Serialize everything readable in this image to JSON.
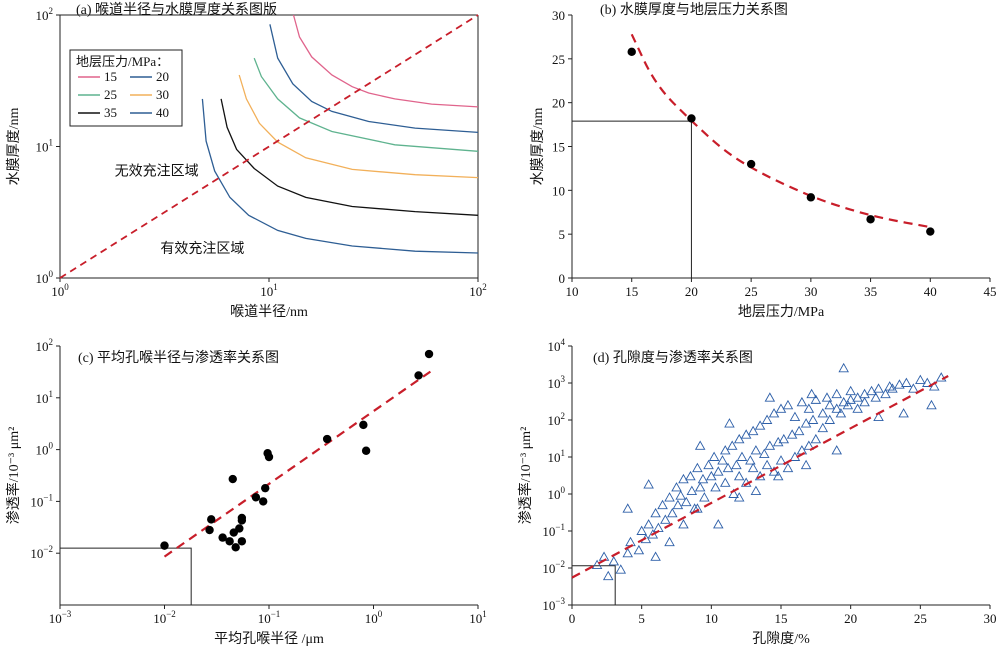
{
  "chart_data": [
    {
      "panel": "a",
      "type": "line",
      "title": "(a) 喉道半径与水膜厚度关系图版",
      "xlabel": "喉道半径/nm",
      "ylabel": "水膜厚度/nm",
      "xscale": "log",
      "yscale": "log",
      "xlim": [
        1,
        100
      ],
      "ylim": [
        1,
        100
      ],
      "xticks": [
        {
          "v": 1,
          "m": "10",
          "e": "0"
        },
        {
          "v": 10,
          "m": "10",
          "e": "1"
        },
        {
          "v": 100,
          "m": "10",
          "e": "2"
        }
      ],
      "yticks": [
        {
          "v": 1,
          "m": "10",
          "e": "0"
        },
        {
          "v": 10,
          "m": "10",
          "e": "1"
        },
        {
          "v": 100,
          "m": "10",
          "e": "2"
        }
      ],
      "legend_title": "地层压力/MPa：",
      "legend_position": "top-left",
      "grid": false,
      "series": [
        {
          "name": "15",
          "color": "#e0648c",
          "x": [
            13.1,
            14,
            16,
            20,
            25,
            30,
            40,
            60,
            100
          ],
          "y": [
            100,
            68,
            48,
            35,
            28.5,
            25.5,
            23,
            21,
            20
          ]
        },
        {
          "name": "20",
          "color": "#2e5e94",
          "x": [
            10.1,
            11,
            13,
            16,
            20,
            30,
            50,
            100
          ],
          "y": [
            85,
            47,
            30,
            22,
            18.5,
            15.5,
            13.8,
            12.8
          ]
        },
        {
          "name": "25",
          "color": "#5fb38f",
          "x": [
            8.5,
            9.2,
            11,
            14,
            20,
            40,
            100
          ],
          "y": [
            47,
            34,
            23,
            16.5,
            13,
            10.3,
            9.2
          ]
        },
        {
          "name": "30",
          "color": "#f2b05a",
          "x": [
            7.2,
            7.8,
            9,
            11,
            15,
            25,
            50,
            100
          ],
          "y": [
            35,
            23,
            15,
            10.8,
            8.2,
            6.7,
            6.1,
            5.8
          ]
        },
        {
          "name": "35",
          "color": "#111111",
          "x": [
            5.9,
            6.3,
            7,
            8.5,
            11,
            15,
            25,
            50,
            100
          ],
          "y": [
            23,
            14,
            9.5,
            6.8,
            5,
            4.1,
            3.5,
            3.2,
            3.0
          ]
        },
        {
          "name": "40",
          "color": "#2e5e94",
          "x": [
            4.8,
            5.0,
            5.5,
            6.5,
            8,
            11,
            15,
            25,
            50,
            100
          ],
          "y": [
            23,
            11,
            6.5,
            4.1,
            3.0,
            2.3,
            2.0,
            1.75,
            1.6,
            1.55
          ]
        }
      ],
      "diagonal": {
        "x": [
          1,
          100
        ],
        "y": [
          1,
          100
        ],
        "color": "#c81e2a"
      },
      "annotations": [
        {
          "text": "无效充注区域",
          "x": 2.9,
          "y": 6.0
        },
        {
          "text": "有效充注区域",
          "x": 4.8,
          "y": 1.55
        }
      ]
    },
    {
      "panel": "b",
      "type": "scatter",
      "title": "(b) 水膜厚度与地层压力关系图",
      "xlabel": "地层压力/MPa",
      "ylabel": "水膜厚度/nm",
      "xlim": [
        10,
        45
      ],
      "ylim": [
        0,
        30
      ],
      "xticks": [
        10,
        15,
        20,
        25,
        30,
        35,
        40,
        45
      ],
      "yticks": [
        0,
        5,
        10,
        15,
        20,
        25,
        30
      ],
      "grid": false,
      "points": {
        "x": [
          15,
          20,
          25,
          30,
          35,
          40
        ],
        "y": [
          25.8,
          18.2,
          13.0,
          9.2,
          6.7,
          5.3
        ]
      },
      "fit": {
        "x": [
          15,
          17,
          20,
          23,
          26,
          30,
          33,
          36,
          40
        ],
        "y": [
          27.8,
          22.0,
          17.9,
          14.2,
          11.8,
          9.3,
          7.9,
          6.8,
          5.8
        ],
        "color": "#c81e2a"
      },
      "guide": {
        "x": 20,
        "y": 17.9
      }
    },
    {
      "panel": "c",
      "type": "scatter",
      "title": "(c) 平均孔喉半径与渗透率关系图",
      "xlabel": "平均孔喉半径 /μm",
      "ylabel": "渗透率/10⁻³ μm²",
      "xscale": "log",
      "yscale": "log",
      "xlim": [
        0.001,
        10
      ],
      "ylim": [
        0.001,
        100
      ],
      "xticks": [
        {
          "v": 0.001,
          "m": "10",
          "e": "−3"
        },
        {
          "v": 0.01,
          "m": "10",
          "e": "−2"
        },
        {
          "v": 0.1,
          "m": "10",
          "e": "−1"
        },
        {
          "v": 1,
          "m": "10",
          "e": "0"
        },
        {
          "v": 10,
          "m": "10",
          "e": "1"
        }
      ],
      "yticks": [
        {
          "v": 0.01,
          "m": "10",
          "e": "−2"
        },
        {
          "v": 0.1,
          "m": "10",
          "e": "−1"
        },
        {
          "v": 1,
          "m": "10",
          "e": "0"
        },
        {
          "v": 10,
          "m": "10",
          "e": "1"
        },
        {
          "v": 100,
          "m": "10",
          "e": "2"
        }
      ],
      "grid": false,
      "points": {
        "x": [
          0.01,
          0.027,
          0.028,
          0.036,
          0.042,
          0.046,
          0.048,
          0.052,
          0.055,
          0.055,
          0.055,
          0.075,
          0.045,
          0.088,
          0.092,
          0.097,
          0.1,
          0.36,
          0.8,
          0.85,
          2.7,
          3.4
        ],
        "y": [
          0.014,
          0.028,
          0.045,
          0.02,
          0.017,
          0.025,
          0.013,
          0.03,
          0.017,
          0.043,
          0.048,
          0.12,
          0.27,
          0.1,
          0.18,
          0.85,
          0.72,
          1.6,
          3.0,
          0.95,
          27,
          70
        ]
      },
      "fit": {
        "x": [
          0.01,
          3.5
        ],
        "y": [
          0.0086,
          32
        ],
        "color": "#c81e2a"
      },
      "guide": {
        "x": 0.018,
        "y": 0.0125
      }
    },
    {
      "panel": "d",
      "type": "scatter",
      "title": "(d) 孔隙度与渗透率关系图",
      "xlabel": "孔隙度/%",
      "ylabel": "渗透率/10⁻³ μm²",
      "yscale": "log",
      "xlim": [
        0,
        30
      ],
      "ylim": [
        0.001,
        10000
      ],
      "xticks": [
        0,
        5,
        10,
        15,
        20,
        25,
        30
      ],
      "yticks": [
        {
          "v": 0.001,
          "m": "10",
          "e": "−3"
        },
        {
          "v": 0.01,
          "m": "10",
          "e": "−2"
        },
        {
          "v": 0.1,
          "m": "10",
          "e": "−1"
        },
        {
          "v": 1,
          "m": "10",
          "e": "0"
        },
        {
          "v": 10,
          "m": "10",
          "e": "1"
        },
        {
          "v": 100,
          "m": "10",
          "e": "2"
        },
        {
          "v": 1000,
          "m": "10",
          "e": "3"
        },
        {
          "v": 10000,
          "m": "10",
          "e": "4"
        }
      ],
      "grid": false,
      "marker": "triangle",
      "marker_color": "#2d5fa8",
      "points": {
        "x": [
          1.8,
          2.3,
          2.6,
          3.0,
          3.5,
          4.0,
          4.2,
          4.8,
          5.0,
          5.3,
          5.5,
          5.8,
          6.0,
          6.2,
          6.5,
          6.7,
          7.0,
          7.2,
          7.5,
          7.6,
          7.8,
          8.0,
          8.2,
          8.5,
          8.6,
          8.8,
          9.0,
          9.2,
          9.4,
          9.5,
          9.8,
          10.0,
          10.2,
          10.3,
          10.5,
          10.8,
          11.0,
          11.0,
          11.2,
          11.5,
          11.6,
          11.8,
          12.0,
          12.0,
          12.2,
          12.5,
          12.5,
          12.8,
          13.0,
          13.0,
          13.2,
          13.5,
          13.5,
          13.8,
          14.0,
          14.0,
          14.2,
          14.5,
          14.5,
          14.8,
          15.0,
          15.0,
          15.2,
          15.5,
          15.5,
          15.8,
          16.0,
          16.0,
          16.3,
          16.5,
          16.5,
          16.8,
          17.0,
          17.0,
          17.3,
          17.5,
          17.5,
          18.0,
          18.0,
          18.3,
          18.5,
          18.5,
          19.0,
          19.0,
          19.3,
          19.5,
          19.8,
          20.0,
          20.0,
          20.5,
          20.5,
          21.0,
          21.0,
          21.5,
          21.8,
          22.0,
          22.5,
          22.8,
          23.0,
          23.5,
          24.0,
          24.5,
          25.0,
          25.5,
          26.0,
          26.5,
          6.0,
          7.0,
          8.0,
          9.0,
          10.5,
          12.0,
          13.2,
          14.8,
          16.8,
          19.0,
          23.8,
          25.8,
          4.0,
          5.5,
          9.2,
          11.3,
          14.2,
          17.2,
          19.5,
          22.0
        ],
        "y": [
          0.012,
          0.02,
          0.006,
          0.015,
          0.009,
          0.025,
          0.05,
          0.03,
          0.1,
          0.06,
          0.15,
          0.08,
          0.3,
          0.12,
          0.5,
          0.2,
          0.8,
          0.3,
          1.5,
          0.5,
          0.9,
          2.5,
          0.6,
          3.0,
          1.2,
          0.4,
          5.0,
          1.5,
          2.5,
          0.8,
          6.0,
          3.0,
          10,
          1.5,
          4.0,
          8.0,
          15,
          2.0,
          5.0,
          20,
          1.0,
          6.0,
          30,
          3.0,
          10,
          40,
          2.0,
          8.0,
          50,
          5.0,
          15,
          70,
          3.0,
          12,
          100,
          6.0,
          20,
          150,
          4.0,
          25,
          200,
          8.0,
          30,
          250,
          5.0,
          40,
          120,
          10,
          50,
          300,
          15,
          80,
          200,
          20,
          100,
          350,
          30,
          150,
          60,
          400,
          250,
          100,
          200,
          500,
          150,
          300,
          250,
          350,
          600,
          400,
          200,
          500,
          300,
          600,
          400,
          700,
          500,
          800,
          700,
          900,
          1000,
          700,
          1200,
          1000,
          800,
          1400,
          0.02,
          0.05,
          0.15,
          0.4,
          0.15,
          0.8,
          1.2,
          3.0,
          6.0,
          15,
          150,
          250,
          0.4,
          1.8,
          20,
          80,
          400,
          500,
          2500,
          120
        ]
      },
      "fit": {
        "x": [
          0,
          27
        ],
        "y": [
          0.0055,
          1550
        ],
        "color": "#c81e2a"
      },
      "guide": {
        "x": 3.1,
        "y": 0.0115
      }
    }
  ]
}
